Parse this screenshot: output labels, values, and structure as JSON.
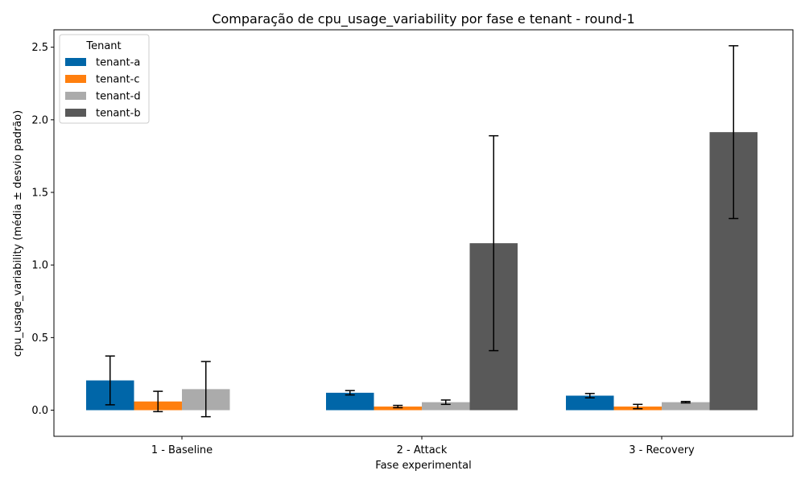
{
  "chart_data": {
    "type": "bar",
    "title": "Comparação de cpu_usage_variability por fase e tenant - round-1",
    "xlabel": "Fase experimental",
    "ylabel": "cpu_usage_variability (média ± desvio padrão)",
    "categories": [
      "1 - Baseline",
      "2 - Attack",
      "3 - Recovery"
    ],
    "ylim": [
      -0.18,
      2.62
    ],
    "yticks": [
      0.0,
      0.5,
      1.0,
      1.5,
      2.0,
      2.5
    ],
    "ytick_labels": [
      "0.0",
      "0.5",
      "1.0",
      "1.5",
      "2.0",
      "2.5"
    ],
    "legend": {
      "title": "Tenant",
      "placement": "top-left"
    },
    "series": [
      {
        "name": "tenant-a",
        "color": "#0066a8",
        "values": [
          0.205,
          0.12,
          0.1
        ],
        "errors": [
          0.168,
          0.015,
          0.015
        ]
      },
      {
        "name": "tenant-c",
        "color": "#ff7f0e",
        "values": [
          0.06,
          0.025,
          0.025
        ],
        "errors": [
          0.07,
          0.008,
          0.015
        ]
      },
      {
        "name": "tenant-d",
        "color": "#ababab",
        "values": [
          0.145,
          0.055,
          0.055
        ],
        "errors": [
          0.19,
          0.015,
          0.005
        ]
      },
      {
        "name": "tenant-b",
        "color": "#595959",
        "values": [
          null,
          1.15,
          1.915
        ],
        "errors": [
          null,
          0.74,
          0.595
        ]
      }
    ]
  }
}
